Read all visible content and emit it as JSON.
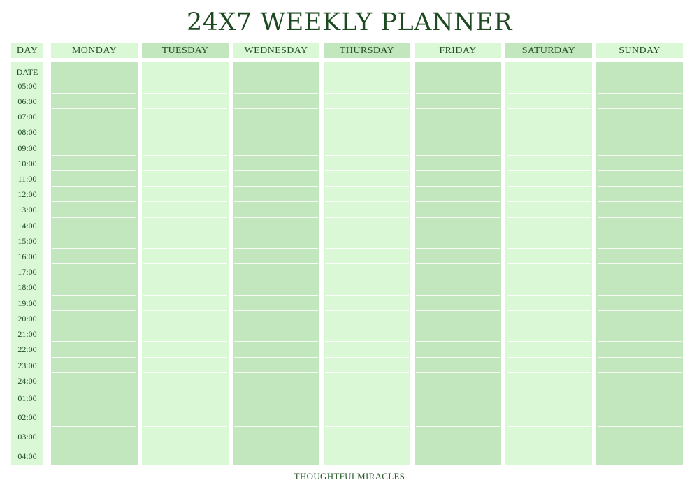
{
  "title": "24X7 WEEKLY PLANNER",
  "day_label": "DAY",
  "date_label": "DATE",
  "days": [
    "MONDAY",
    "TUESDAY",
    "WEDNESDAY",
    "THURSDAY",
    "FRIDAY",
    "SATURDAY",
    "SUNDAY"
  ],
  "times": [
    "05:00",
    "06:00",
    "07:00",
    "08:00",
    "09:00",
    "10:00",
    "11:00",
    "12:00",
    "13:00",
    "14:00",
    "15:00",
    "16:00",
    "17:00",
    "18:00",
    "19:00",
    "20:00",
    "21:00",
    "22:00",
    "23:00",
    "24:00",
    "01:00",
    "02:00",
    "03:00",
    "04:00"
  ],
  "footer": "THOUGHTFULMIRACLES",
  "colors": {
    "dark_green": "#c2e6bd",
    "light_green": "#daf8d6",
    "text": "#1f4d22"
  }
}
